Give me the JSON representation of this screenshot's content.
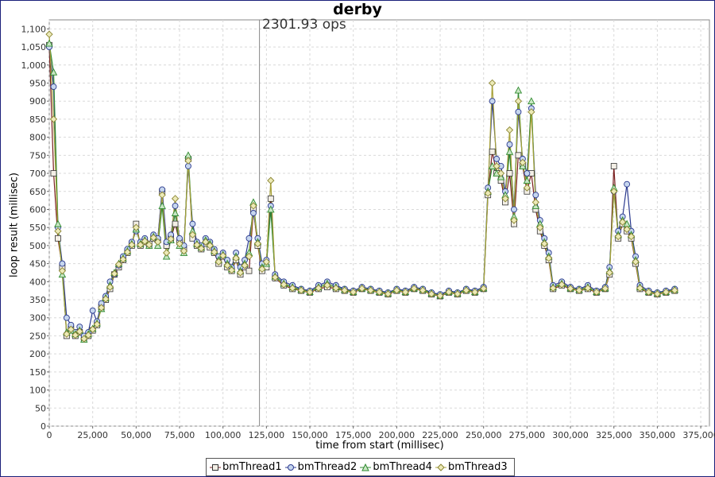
{
  "chart_data": {
    "type": "line",
    "title": "derby",
    "xlabel": "time from start (millisec)",
    "ylabel": "loop result (millisec)",
    "annotation": {
      "label": "2301.93 ops",
      "x": 121000
    },
    "xlim": [
      0,
      380000
    ],
    "ylim": [
      0,
      1125
    ],
    "x_ticks": [
      0,
      25000,
      50000,
      75000,
      100000,
      125000,
      150000,
      175000,
      200000,
      225000,
      250000,
      275000,
      300000,
      325000,
      350000,
      375000
    ],
    "x_tick_labels": [
      "0",
      "25,000",
      "50,000",
      "75,000",
      "100,000",
      "125,000",
      "150,000",
      "175,000",
      "200,000",
      "225,000",
      "250,000",
      "275,000",
      "300,000",
      "325,000",
      "350,000",
      "375,000"
    ],
    "y_ticks": [
      0,
      50,
      100,
      150,
      200,
      250,
      300,
      350,
      400,
      450,
      500,
      550,
      600,
      650,
      700,
      750,
      800,
      850,
      900,
      950,
      1000,
      1050,
      1100
    ],
    "y_tick_labels": [
      "0",
      "50",
      "100",
      "150",
      "200",
      "250",
      "300",
      "350",
      "400",
      "450",
      "500",
      "550",
      "600",
      "650",
      "700",
      "750",
      "800",
      "850",
      "900",
      "950",
      "1,000",
      "1,050",
      "1,100"
    ],
    "grid": true,
    "legend_position": "bottom",
    "series": [
      {
        "name": "bmThread1",
        "color": "#7a1f1f",
        "marker": "square",
        "x": [
          0,
          2500,
          5000,
          7500,
          10000,
          12500,
          15000,
          17500,
          20000,
          22500,
          25000,
          27500,
          30000,
          32500,
          35000,
          37500,
          40000,
          42500,
          45000,
          47500,
          50000,
          52500,
          55000,
          57500,
          60000,
          62500,
          65000,
          67500,
          70000,
          72500,
          75000,
          77500,
          80000,
          82500,
          85000,
          87500,
          90000,
          92500,
          95000,
          97500,
          100000,
          102500,
          105000,
          107500,
          110000,
          112500,
          115000,
          117500,
          120000,
          122500,
          125000,
          127500,
          130000,
          135000,
          140000,
          145000,
          150000,
          155000,
          160000,
          165000,
          170000,
          175000,
          180000,
          185000,
          190000,
          195000,
          200000,
          205000,
          210000,
          215000,
          220000,
          225000,
          230000,
          235000,
          240000,
          245000,
          250000,
          252500,
          255000,
          257500,
          260000,
          262500,
          265000,
          267500,
          270000,
          272500,
          275000,
          277500,
          280000,
          282500,
          285000,
          287500,
          290000,
          295000,
          300000,
          305000,
          310000,
          315000,
          320000,
          322500,
          325000,
          327500,
          330000,
          332500,
          335000,
          337500,
          340000,
          345000,
          350000,
          355000,
          360000
        ],
        "values": [
          1055,
          700,
          520,
          440,
          250,
          270,
          250,
          260,
          245,
          250,
          265,
          280,
          330,
          350,
          380,
          420,
          440,
          460,
          480,
          500,
          560,
          500,
          510,
          505,
          520,
          515,
          650,
          500,
          520,
          560,
          510,
          490,
          740,
          520,
          500,
          490,
          505,
          495,
          480,
          450,
          470,
          440,
          430,
          460,
          420,
          440,
          430,
          600,
          500,
          430,
          440,
          630,
          410,
          390,
          380,
          375,
          370,
          380,
          385,
          380,
          375,
          370,
          380,
          375,
          370,
          365,
          375,
          370,
          380,
          375,
          365,
          360,
          370,
          365,
          375,
          370,
          380,
          640,
          760,
          700,
          680,
          620,
          700,
          560,
          750,
          720,
          650,
          700,
          600,
          540,
          500,
          460,
          380,
          390,
          380,
          375,
          380,
          370,
          380,
          420,
          720,
          520,
          560,
          540,
          520,
          450,
          380,
          370,
          365,
          370,
          375
        ]
      },
      {
        "name": "bmThread2",
        "color": "#2b3a8f",
        "marker": "circle",
        "x": [
          0,
          2500,
          5000,
          7500,
          10000,
          12500,
          15000,
          17500,
          20000,
          22500,
          25000,
          27500,
          30000,
          32500,
          35000,
          37500,
          40000,
          42500,
          45000,
          47500,
          50000,
          52500,
          55000,
          57500,
          60000,
          62500,
          65000,
          67500,
          70000,
          72500,
          75000,
          77500,
          80000,
          82500,
          85000,
          87500,
          90000,
          92500,
          95000,
          97500,
          100000,
          102500,
          105000,
          107500,
          110000,
          112500,
          115000,
          117500,
          120000,
          122500,
          125000,
          127500,
          130000,
          135000,
          140000,
          145000,
          150000,
          155000,
          160000,
          165000,
          170000,
          175000,
          180000,
          185000,
          190000,
          195000,
          200000,
          205000,
          210000,
          215000,
          220000,
          225000,
          230000,
          235000,
          240000,
          245000,
          250000,
          252500,
          255000,
          257500,
          260000,
          262500,
          265000,
          267500,
          270000,
          272500,
          275000,
          277500,
          280000,
          282500,
          285000,
          287500,
          290000,
          295000,
          300000,
          305000,
          310000,
          315000,
          320000,
          322500,
          325000,
          327500,
          330000,
          332500,
          335000,
          337500,
          340000,
          345000,
          350000,
          355000,
          360000
        ],
        "values": [
          1050,
          940,
          550,
          450,
          300,
          280,
          260,
          275,
          250,
          260,
          320,
          290,
          340,
          360,
          400,
          420,
          445,
          470,
          490,
          510,
          540,
          510,
          520,
          500,
          530,
          520,
          655,
          510,
          530,
          610,
          520,
          500,
          720,
          560,
          510,
          500,
          520,
          510,
          490,
          470,
          480,
          460,
          440,
          480,
          440,
          460,
          520,
          590,
          520,
          450,
          460,
          610,
          420,
          400,
          390,
          380,
          375,
          390,
          400,
          390,
          380,
          375,
          385,
          380,
          375,
          370,
          380,
          375,
          385,
          380,
          370,
          365,
          375,
          370,
          380,
          375,
          385,
          660,
          900,
          740,
          720,
          650,
          780,
          600,
          870,
          740,
          700,
          880,
          640,
          570,
          520,
          480,
          390,
          400,
          385,
          380,
          390,
          375,
          385,
          440,
          650,
          540,
          580,
          670,
          540,
          470,
          390,
          375,
          370,
          375,
          380
        ]
      },
      {
        "name": "bmThread4",
        "color": "#2f8a2f",
        "marker": "triangle",
        "x": [
          0,
          2500,
          5000,
          7500,
          10000,
          12500,
          15000,
          17500,
          20000,
          22500,
          25000,
          27500,
          30000,
          32500,
          35000,
          37500,
          40000,
          42500,
          45000,
          47500,
          50000,
          52500,
          55000,
          57500,
          60000,
          62500,
          65000,
          67500,
          70000,
          72500,
          75000,
          77500,
          80000,
          82500,
          85000,
          87500,
          90000,
          92500,
          95000,
          97500,
          100000,
          102500,
          105000,
          107500,
          110000,
          112500,
          115000,
          117500,
          120000,
          122500,
          125000,
          127500,
          130000,
          135000,
          140000,
          145000,
          150000,
          155000,
          160000,
          165000,
          170000,
          175000,
          180000,
          185000,
          190000,
          195000,
          200000,
          205000,
          210000,
          215000,
          220000,
          225000,
          230000,
          235000,
          240000,
          245000,
          250000,
          252500,
          255000,
          257500,
          260000,
          262500,
          265000,
          267500,
          270000,
          272500,
          275000,
          277500,
          280000,
          282500,
          285000,
          287500,
          290000,
          295000,
          300000,
          305000,
          310000,
          315000,
          320000,
          322500,
          325000,
          327500,
          330000,
          332500,
          335000,
          337500,
          340000,
          345000,
          350000,
          355000,
          360000
        ],
        "values": [
          1060,
          980,
          560,
          420,
          260,
          265,
          255,
          265,
          240,
          255,
          270,
          285,
          325,
          355,
          390,
          425,
          450,
          465,
          485,
          505,
          545,
          505,
          515,
          500,
          525,
          500,
          610,
          470,
          515,
          590,
          500,
          480,
          750,
          540,
          505,
          495,
          515,
          505,
          485,
          460,
          475,
          450,
          435,
          470,
          430,
          450,
          480,
          620,
          510,
          440,
          450,
          600,
          415,
          395,
          385,
          378,
          372,
          385,
          395,
          385,
          378,
          372,
          382,
          378,
          372,
          368,
          378,
          372,
          382,
          378,
          368,
          362,
          372,
          368,
          378,
          372,
          382,
          650,
          720,
          700,
          690,
          640,
          760,
          580,
          930,
          720,
          680,
          900,
          610,
          560,
          510,
          470,
          385,
          395,
          382,
          378,
          385,
          372,
          382,
          430,
          660,
          530,
          570,
          560,
          530,
          460,
          385,
          372,
          368,
          372,
          378
        ]
      },
      {
        "name": "bmThread3",
        "color": "#a8a23a",
        "marker": "diamond",
        "x": [
          0,
          2500,
          5000,
          7500,
          10000,
          12500,
          15000,
          17500,
          20000,
          22500,
          25000,
          27500,
          30000,
          32500,
          35000,
          37500,
          40000,
          42500,
          45000,
          47500,
          50000,
          52500,
          55000,
          57500,
          60000,
          62500,
          65000,
          67500,
          70000,
          72500,
          75000,
          77500,
          80000,
          82500,
          85000,
          87500,
          90000,
          92500,
          95000,
          97500,
          100000,
          102500,
          105000,
          107500,
          110000,
          112500,
          115000,
          117500,
          120000,
          122500,
          125000,
          127500,
          130000,
          135000,
          140000,
          145000,
          150000,
          155000,
          160000,
          165000,
          170000,
          175000,
          180000,
          185000,
          190000,
          195000,
          200000,
          205000,
          210000,
          215000,
          220000,
          225000,
          230000,
          235000,
          240000,
          245000,
          250000,
          252500,
          255000,
          257500,
          260000,
          262500,
          265000,
          267500,
          270000,
          272500,
          275000,
          277500,
          280000,
          282500,
          285000,
          287500,
          290000,
          295000,
          300000,
          305000,
          310000,
          315000,
          320000,
          322500,
          325000,
          327500,
          330000,
          332500,
          335000,
          337500,
          340000,
          345000,
          350000,
          355000,
          360000
        ],
        "values": [
          1085,
          850,
          540,
          430,
          255,
          268,
          252,
          262,
          242,
          252,
          268,
          282,
          328,
          352,
          385,
          422,
          448,
          462,
          482,
          502,
          550,
          502,
          512,
          502,
          522,
          510,
          640,
          480,
          518,
          630,
          505,
          485,
          735,
          530,
          502,
          492,
          510,
          500,
          482,
          455,
          472,
          445,
          432,
          465,
          425,
          445,
          470,
          610,
          505,
          435,
          455,
          680,
          412,
          392,
          382,
          376,
          371,
          382,
          390,
          382,
          376,
          371,
          381,
          376,
          371,
          366,
          376,
          371,
          381,
          376,
          366,
          361,
          371,
          366,
          376,
          371,
          381,
          645,
          950,
          720,
          700,
          630,
          820,
          570,
          900,
          730,
          660,
          870,
          620,
          550,
          505,
          465,
          382,
          392,
          381,
          376,
          382,
          371,
          381,
          425,
          650,
          525,
          565,
          545,
          525,
          455,
          382,
          371,
          366,
          371,
          376
        ]
      }
    ]
  }
}
